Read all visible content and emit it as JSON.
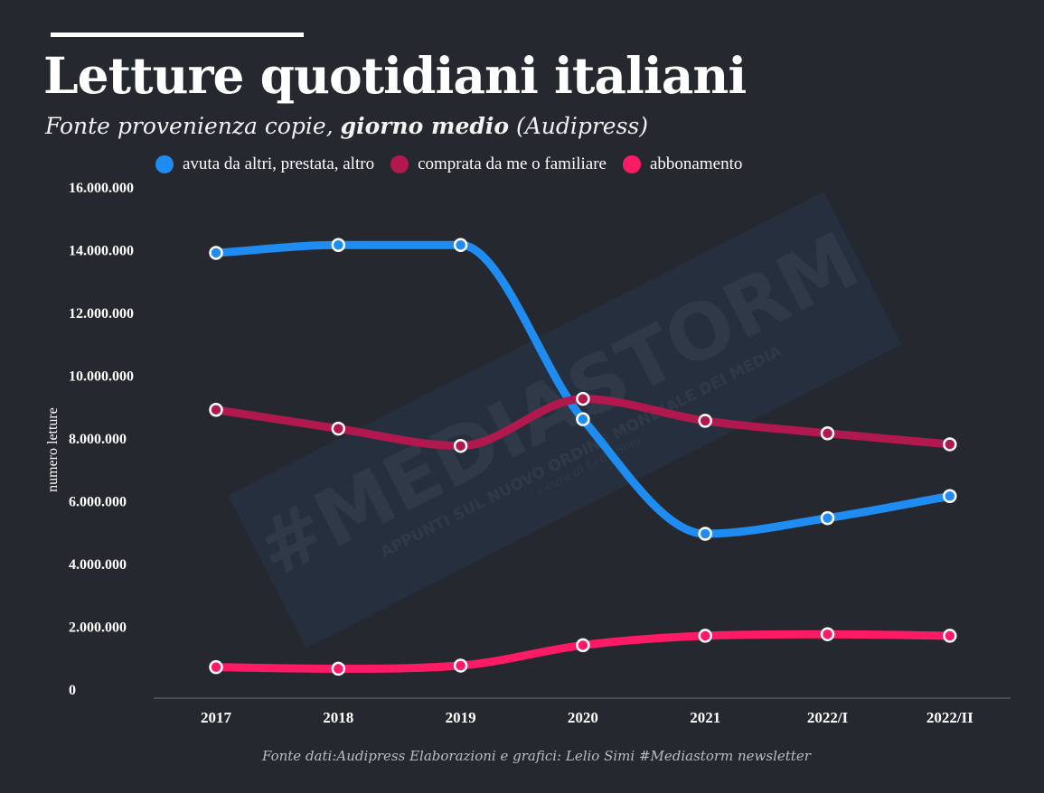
{
  "header": {
    "title": "Letture quotidiani italiani",
    "subtitle_part1": "Fonte provenienza copie, ",
    "subtitle_bold": "giorno medio",
    "subtitle_part2": " (Audipress)"
  },
  "watermark": {
    "main": "#MEDIASTORM",
    "sub": "APPUNTI SUL NUOVO ORDINE MONDIALE DEI MEDIA",
    "credit": "a cura di Lelio Simi"
  },
  "footer": {
    "source": "Fonte dati:Audipress Elaborazioni e grafici: Lelio Simi  #Mediastorm newsletter"
  },
  "colors": {
    "background": "#25282f",
    "text": "#ffffff",
    "axis": "#6b6f78"
  },
  "chart_data": {
    "type": "line",
    "title": "Letture quotidiani italiani",
    "subtitle": "Fonte provenienza copie, giorno medio (Audipress)",
    "xlabel": "",
    "ylabel": "numero letture",
    "categories": [
      "2017",
      "2018",
      "2019",
      "2020",
      "2021",
      "2022/I",
      "2022/II"
    ],
    "ylim": [
      0,
      16000000
    ],
    "yticks": [
      0,
      2000000,
      4000000,
      6000000,
      8000000,
      10000000,
      12000000,
      14000000,
      16000000
    ],
    "ytick_labels": [
      "0",
      "2.000.000",
      "4.000.000",
      "6.000.000",
      "8.000.000",
      "10.000.000",
      "12.000.000",
      "14.000.000",
      "16.000.000"
    ],
    "grid": false,
    "legend_position": "top",
    "smooth": true,
    "series": [
      {
        "name": "avuta da altri, prestata, altro",
        "color": "#1e8cf0",
        "values": [
          13900000,
          14150000,
          14150000,
          8600000,
          4950000,
          5450000,
          6150000
        ]
      },
      {
        "name": "comprata da me o familiare",
        "color": "#b0184e",
        "values": [
          8900000,
          8300000,
          7750000,
          9250000,
          8550000,
          8150000,
          7800000
        ]
      },
      {
        "name": "abbonamento",
        "color": "#ff1a66",
        "values": [
          700000,
          650000,
          750000,
          1400000,
          1700000,
          1750000,
          1700000
        ]
      }
    ]
  }
}
